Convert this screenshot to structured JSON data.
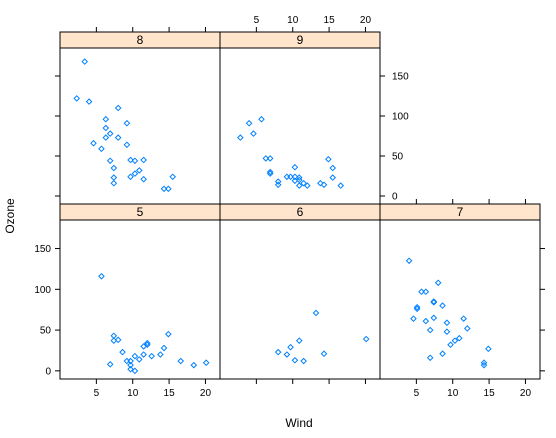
{
  "chart_data": {
    "type": "scatter",
    "xlabel": "Wind",
    "ylabel": "Ozone",
    "xlim": [
      0,
      22
    ],
    "ylim": [
      -10,
      185
    ],
    "xticks": [
      5,
      10,
      15,
      20
    ],
    "yticks": [
      0,
      50,
      100,
      150
    ],
    "colors": {
      "points": "#0080ff",
      "strip": "#ffe5cc"
    },
    "panels": [
      {
        "label": "5",
        "points": [
          [
            5.7,
            116
          ],
          [
            6.9,
            8
          ],
          [
            7.4,
            37
          ],
          [
            7.4,
            43
          ],
          [
            8.0,
            38
          ],
          [
            8.6,
            23
          ],
          [
            9.2,
            12
          ],
          [
            9.7,
            7
          ],
          [
            9.7,
            12
          ],
          [
            9.7,
            2
          ],
          [
            10.3,
            0
          ],
          [
            10.3,
            18
          ],
          [
            10.9,
            14
          ],
          [
            11.5,
            20
          ],
          [
            11.5,
            30
          ],
          [
            12.0,
            34
          ],
          [
            12.0,
            32
          ],
          [
            12.6,
            18
          ],
          [
            13.8,
            20
          ],
          [
            14.3,
            28
          ],
          [
            14.9,
            45
          ],
          [
            16.6,
            12
          ],
          [
            18.4,
            7
          ],
          [
            20.1,
            10
          ]
        ]
      },
      {
        "label": "6",
        "points": [
          [
            8.0,
            23
          ],
          [
            9.2,
            20
          ],
          [
            9.7,
            29
          ],
          [
            10.3,
            13
          ],
          [
            10.9,
            37
          ],
          [
            11.5,
            12
          ],
          [
            13.2,
            71
          ],
          [
            14.3,
            21
          ],
          [
            20.1,
            39
          ]
        ]
      },
      {
        "label": "7",
        "points": [
          [
            4.0,
            135
          ],
          [
            4.6,
            64
          ],
          [
            5.1,
            78
          ],
          [
            5.1,
            76
          ],
          [
            5.7,
            97
          ],
          [
            6.3,
            97
          ],
          [
            6.3,
            61
          ],
          [
            6.9,
            50
          ],
          [
            6.9,
            16
          ],
          [
            7.4,
            84
          ],
          [
            7.4,
            85
          ],
          [
            7.4,
            65
          ],
          [
            8.0,
            108
          ],
          [
            8.6,
            80
          ],
          [
            8.6,
            21
          ],
          [
            9.2,
            59
          ],
          [
            9.2,
            48
          ],
          [
            9.7,
            32
          ],
          [
            10.3,
            37
          ],
          [
            10.9,
            40
          ],
          [
            11.5,
            64
          ],
          [
            12.0,
            52
          ],
          [
            14.3,
            7
          ],
          [
            14.3,
            10
          ],
          [
            14.9,
            27
          ]
        ]
      },
      {
        "label": "8",
        "points": [
          [
            2.3,
            122
          ],
          [
            3.4,
            168
          ],
          [
            4.0,
            118
          ],
          [
            4.6,
            66
          ],
          [
            5.7,
            59
          ],
          [
            6.3,
            73
          ],
          [
            6.3,
            85
          ],
          [
            6.3,
            96
          ],
          [
            6.9,
            78
          ],
          [
            6.9,
            44
          ],
          [
            7.4,
            35
          ],
          [
            7.4,
            23
          ],
          [
            7.4,
            16
          ],
          [
            8.0,
            110
          ],
          [
            8.0,
            73
          ],
          [
            9.2,
            64
          ],
          [
            9.2,
            91
          ],
          [
            9.7,
            45
          ],
          [
            9.7,
            24
          ],
          [
            10.3,
            44
          ],
          [
            10.3,
            28
          ],
          [
            10.9,
            32
          ],
          [
            11.5,
            45
          ],
          [
            11.5,
            21
          ],
          [
            14.3,
            9
          ],
          [
            14.9,
            9
          ],
          [
            15.5,
            24
          ]
        ]
      },
      {
        "label": "9",
        "points": [
          [
            2.8,
            73
          ],
          [
            4.0,
            91
          ],
          [
            4.6,
            78
          ],
          [
            5.7,
            96
          ],
          [
            6.3,
            47
          ],
          [
            6.9,
            47
          ],
          [
            6.9,
            30
          ],
          [
            6.9,
            28
          ],
          [
            8.0,
            18
          ],
          [
            8.0,
            14
          ],
          [
            9.2,
            24
          ],
          [
            9.7,
            24
          ],
          [
            10.3,
            36
          ],
          [
            10.3,
            24
          ],
          [
            10.3,
            19
          ],
          [
            10.9,
            23
          ],
          [
            10.9,
            20
          ],
          [
            10.9,
            13
          ],
          [
            11.5,
            16
          ],
          [
            12.0,
            13
          ],
          [
            13.8,
            16
          ],
          [
            14.3,
            14
          ],
          [
            14.9,
            46
          ],
          [
            15.5,
            35
          ],
          [
            15.5,
            23
          ],
          [
            16.6,
            13
          ]
        ]
      }
    ]
  }
}
